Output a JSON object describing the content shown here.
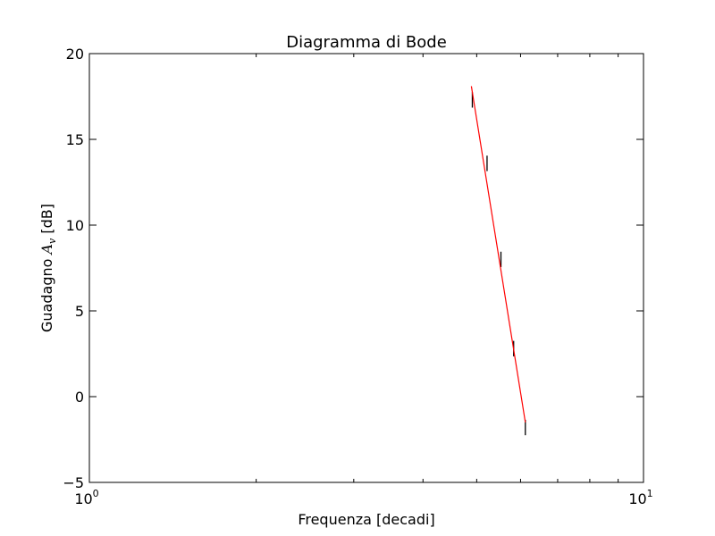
{
  "chart_data": {
    "type": "scatter",
    "title": "Diagramma di Bode",
    "xlabel": "Frequenza [decadi]",
    "ylabel_prefix": "Guadagno ",
    "ylabel_symbol": "A",
    "ylabel_subscript": "v",
    "ylabel_suffix": " [dB]",
    "x_scale": "log",
    "xlim": [
      1,
      10
    ],
    "ylim": [
      -5,
      20
    ],
    "x_ticks": [
      {
        "value": 1,
        "base": "10",
        "exp": "0"
      },
      {
        "value": 10,
        "base": "10",
        "exp": "1"
      }
    ],
    "y_ticks": [
      {
        "value": 20,
        "label": "20"
      },
      {
        "value": 15,
        "label": "15"
      },
      {
        "value": 10,
        "label": "10"
      },
      {
        "value": 5,
        "label": "5"
      },
      {
        "value": 0,
        "label": "0"
      },
      {
        "value": -5,
        "label": "−5"
      }
    ],
    "grid": false,
    "series": [
      {
        "type": "errorbar",
        "color": "#000000",
        "points": [
          {
            "x": 4.91,
            "y": 17.3,
            "yerr": 0.45
          },
          {
            "x": 5.22,
            "y": 13.6,
            "yerr": 0.45
          },
          {
            "x": 5.53,
            "y": 8.0,
            "yerr": 0.45
          },
          {
            "x": 5.83,
            "y": 2.8,
            "yerr": 0.45
          },
          {
            "x": 6.12,
            "y": -1.8,
            "yerr": 0.45
          }
        ]
      },
      {
        "type": "fit-line",
        "color": "#ff0000",
        "points": [
          {
            "x": 4.89,
            "y": 18.1
          },
          {
            "x": 6.12,
            "y": -1.5
          }
        ]
      }
    ]
  }
}
